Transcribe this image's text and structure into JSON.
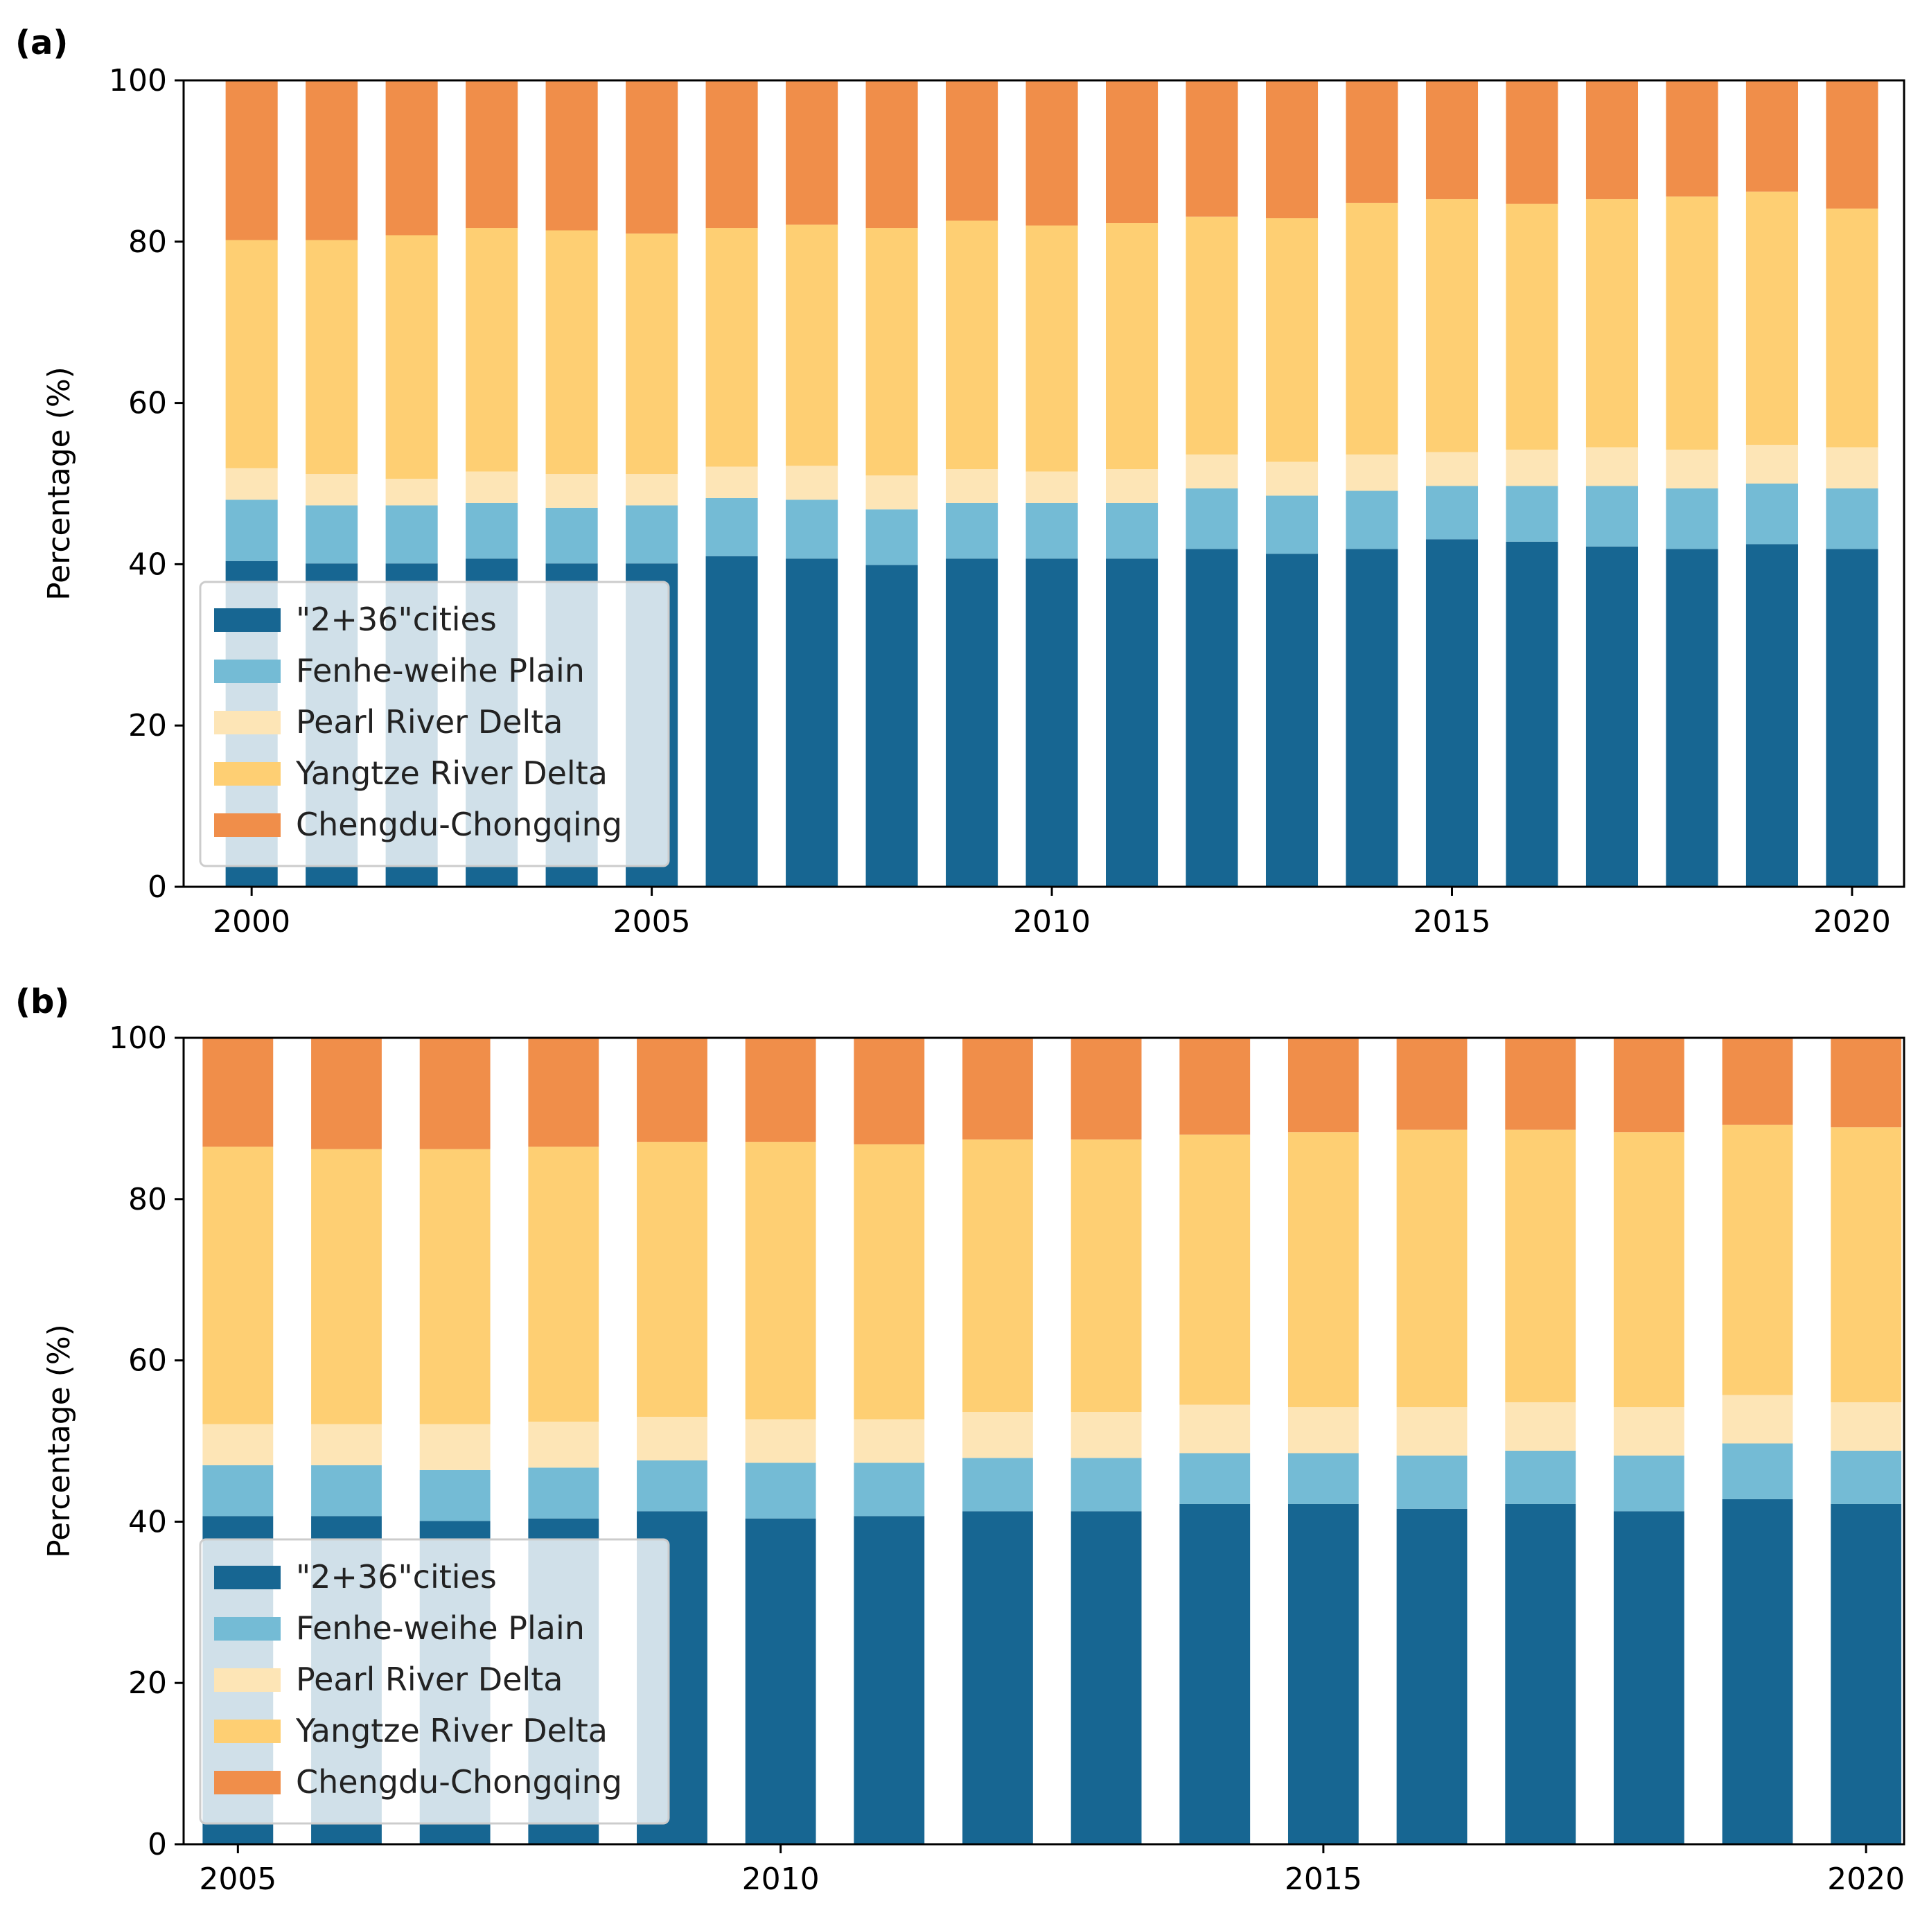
{
  "chart_data": [
    {
      "type": "bar",
      "stacked": true,
      "panel_label": "(a)",
      "ylabel": "Percentage (%)",
      "xlabel": "",
      "ylim": [
        0,
        100
      ],
      "yticks": [
        0,
        20,
        40,
        60,
        80,
        100
      ],
      "xticks": [
        2000,
        2005,
        2010,
        2015,
        2020
      ],
      "xlim": [
        1999.15,
        2020.65
      ],
      "legend_position": "lower-left",
      "categories": [
        2000,
        2001,
        2002,
        2003,
        2004,
        2005,
        2006,
        2007,
        2008,
        2009,
        2010,
        2011,
        2012,
        2013,
        2014,
        2015,
        2016,
        2017,
        2018,
        2019,
        2020
      ],
      "series": [
        {
          "name": "\"2+36\"cities",
          "color": "#176692",
          "values": [
            40.4,
            40.1,
            40.1,
            40.7,
            40.1,
            40.1,
            41.0,
            40.7,
            39.9,
            40.7,
            40.7,
            40.7,
            41.9,
            41.3,
            41.9,
            43.1,
            42.8,
            42.2,
            41.9,
            42.5,
            41.9
          ]
        },
        {
          "name": "Fenhe-weihe Plain",
          "color": "#74bbd5",
          "values": [
            7.6,
            7.2,
            7.2,
            6.9,
            6.9,
            7.2,
            7.2,
            7.3,
            6.9,
            6.9,
            6.9,
            6.9,
            7.5,
            7.2,
            7.2,
            6.6,
            6.9,
            7.5,
            7.5,
            7.5,
            7.5
          ]
        },
        {
          "name": "Pearl River Delta",
          "color": "#fde5b6",
          "values": [
            3.9,
            3.9,
            3.3,
            3.9,
            4.2,
            3.9,
            3.9,
            4.2,
            4.2,
            4.2,
            3.9,
            4.2,
            4.2,
            4.2,
            4.5,
            4.2,
            4.5,
            4.8,
            4.8,
            4.8,
            5.1
          ]
        },
        {
          "name": "Yangtze River Delta",
          "color": "#fecf73",
          "values": [
            28.3,
            29.0,
            30.2,
            30.2,
            30.2,
            29.8,
            29.6,
            29.9,
            30.7,
            30.8,
            30.5,
            30.5,
            29.5,
            30.2,
            31.2,
            31.4,
            30.5,
            30.8,
            31.4,
            31.4,
            29.6
          ]
        },
        {
          "name": "Chengdu-Chongqing",
          "color": "#f08e4a",
          "values": [
            19.8,
            19.8,
            19.2,
            18.3,
            18.6,
            19.0,
            18.3,
            17.9,
            18.3,
            17.4,
            18.0,
            17.7,
            16.9,
            17.1,
            15.2,
            14.7,
            15.3,
            14.7,
            14.4,
            13.8,
            15.9
          ]
        }
      ]
    },
    {
      "type": "bar",
      "stacked": true,
      "panel_label": "(b)",
      "ylabel": "Percentage (%)",
      "xlabel": "",
      "ylim": [
        0,
        100
      ],
      "yticks": [
        0,
        20,
        40,
        60,
        80,
        100
      ],
      "xticks": [
        2005,
        2010,
        2015,
        2020
      ],
      "xlim": [
        2004.5,
        2020.35
      ],
      "legend_position": "lower-left",
      "categories": [
        2005,
        2006,
        2007,
        2008,
        2009,
        2010,
        2011,
        2012,
        2013,
        2014,
        2015,
        2016,
        2017,
        2018,
        2019,
        2020
      ],
      "series": [
        {
          "name": "\"2+36\"cities",
          "color": "#176692",
          "values": [
            40.7,
            40.7,
            40.1,
            40.4,
            41.3,
            40.4,
            40.7,
            41.3,
            41.3,
            42.2,
            42.2,
            41.6,
            42.2,
            41.3,
            42.8,
            42.2
          ]
        },
        {
          "name": "Fenhe-weihe Plain",
          "color": "#74bbd5",
          "values": [
            6.3,
            6.3,
            6.3,
            6.3,
            6.3,
            6.9,
            6.6,
            6.6,
            6.6,
            6.3,
            6.3,
            6.6,
            6.6,
            6.9,
            6.9,
            6.6
          ]
        },
        {
          "name": "Pearl River Delta",
          "color": "#fde5b6",
          "values": [
            5.1,
            5.1,
            5.7,
            5.7,
            5.4,
            5.4,
            5.4,
            5.7,
            5.7,
            6.0,
            5.7,
            6.0,
            6.0,
            6.0,
            6.0,
            6.0
          ]
        },
        {
          "name": "Yangtze River Delta",
          "color": "#fecf73",
          "values": [
            34.4,
            34.1,
            34.1,
            34.1,
            34.1,
            34.4,
            34.1,
            33.8,
            33.8,
            33.5,
            34.1,
            34.4,
            33.8,
            34.1,
            33.5,
            34.1
          ]
        },
        {
          "name": "Chengdu-Chongqing",
          "color": "#f08e4a",
          "values": [
            13.5,
            13.8,
            13.8,
            13.5,
            12.9,
            12.9,
            13.2,
            12.6,
            12.6,
            12.0,
            11.7,
            11.4,
            11.4,
            11.7,
            10.8,
            11.1
          ]
        }
      ]
    }
  ]
}
